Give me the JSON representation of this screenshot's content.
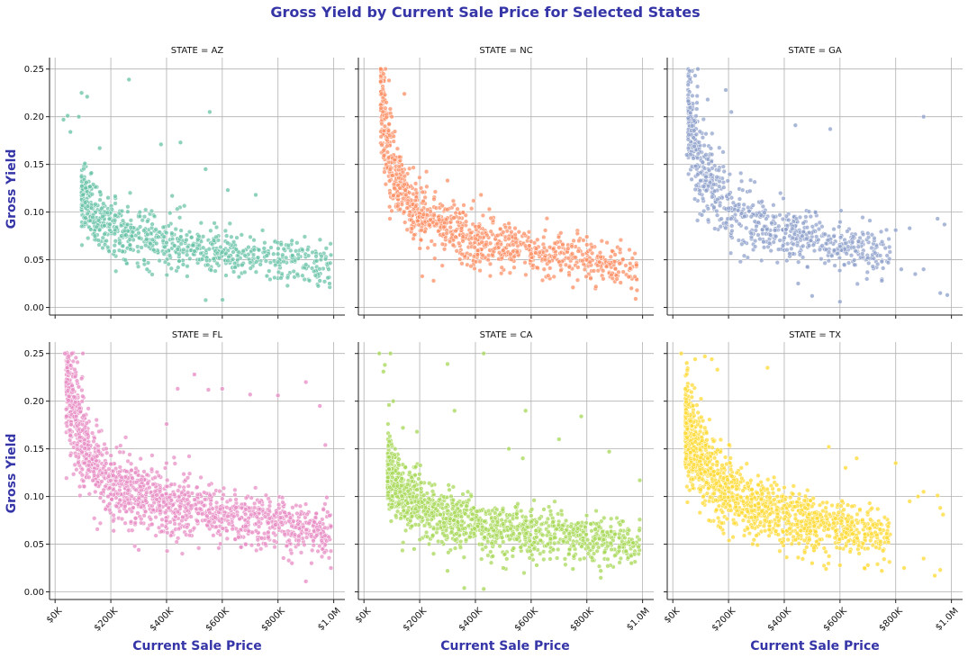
{
  "chart_data": {
    "type": "scatter",
    "title": "Gross Yield by Current Sale Price for Selected States",
    "xlabel": "Current Sale Price",
    "ylabel": "Gross Yield",
    "xlim": [
      -20000,
      1040000
    ],
    "ylim": [
      -0.008,
      0.262
    ],
    "x_ticks": [
      0,
      200000,
      400000,
      600000,
      800000,
      1000000
    ],
    "x_tick_labels": [
      "$0K",
      "$200K",
      "$400K",
      "$600K",
      "$800K",
      "$1.0M"
    ],
    "y_ticks": [
      0.0,
      0.05,
      0.1,
      0.15,
      0.2,
      0.25
    ],
    "y_tick_labels": [
      "0.00",
      "0.05",
      "0.10",
      "0.15",
      "0.20",
      "0.25"
    ],
    "grid": true,
    "facet_variable": "STATE",
    "panels": [
      {
        "title": "STATE = AZ",
        "color": "#66c2a5",
        "points": [
          [
            30000,
            0.197
          ],
          [
            45000,
            0.201
          ],
          [
            55000,
            0.184
          ],
          [
            85000,
            0.2
          ],
          [
            95000,
            0.225
          ],
          [
            115000,
            0.221
          ],
          [
            265000,
            0.239
          ],
          [
            555000,
            0.205
          ],
          [
            100000,
            0.118
          ],
          [
            130000,
            0.141
          ],
          [
            160000,
            0.167
          ],
          [
            190000,
            0.115
          ],
          [
            240000,
            0.101
          ],
          [
            260000,
            0.087
          ],
          [
            300000,
            0.078
          ],
          [
            350000,
            0.071
          ],
          [
            400000,
            0.068
          ],
          [
            420000,
            0.117
          ],
          [
            450000,
            0.173
          ],
          [
            500000,
            0.059
          ],
          [
            540000,
            0.145
          ],
          [
            600000,
            0.058
          ],
          [
            620000,
            0.123
          ],
          [
            650000,
            0.061
          ],
          [
            700000,
            0.047
          ],
          [
            720000,
            0.118
          ],
          [
            750000,
            0.062
          ],
          [
            800000,
            0.056
          ],
          [
            850000,
            0.07
          ],
          [
            900000,
            0.045
          ],
          [
            950000,
            0.028
          ],
          [
            985000,
            0.025
          ],
          [
            990000,
            0.055
          ],
          [
            380000,
            0.171
          ],
          [
            330000,
            0.04
          ],
          [
            460000,
            0.045
          ],
          [
            560000,
            0.039
          ],
          [
            660000,
            0.032
          ],
          [
            760000,
            0.033
          ]
        ],
        "trend": [
          [
            90000,
            0.12
          ],
          [
            150000,
            0.097
          ],
          [
            200000,
            0.087
          ],
          [
            300000,
            0.076
          ],
          [
            400000,
            0.068
          ],
          [
            500000,
            0.063
          ],
          [
            600000,
            0.058
          ],
          [
            700000,
            0.054
          ],
          [
            800000,
            0.051
          ],
          [
            900000,
            0.047
          ],
          [
            990000,
            0.044
          ]
        ],
        "n_cloud": 780,
        "cloud_xrange": [
          95000,
          990000
        ]
      },
      {
        "title": "STATE = NC",
        "color": "#fc8d62",
        "points": [
          [
            60000,
            0.25
          ],
          [
            70000,
            0.245
          ],
          [
            75000,
            0.223
          ],
          [
            90000,
            0.238
          ],
          [
            145000,
            0.224
          ],
          [
            75000,
            0.19
          ],
          [
            100000,
            0.2
          ],
          [
            130000,
            0.154
          ],
          [
            210000,
            0.121
          ],
          [
            270000,
            0.092
          ],
          [
            300000,
            0.133
          ],
          [
            350000,
            0.083
          ],
          [
            400000,
            0.072
          ],
          [
            420000,
            0.118
          ],
          [
            450000,
            0.103
          ],
          [
            480000,
            0.067
          ],
          [
            500000,
            0.06
          ],
          [
            520000,
            0.088
          ],
          [
            550000,
            0.058
          ],
          [
            600000,
            0.056
          ],
          [
            650000,
            0.05
          ],
          [
            700000,
            0.048
          ],
          [
            750000,
            0.021
          ],
          [
            800000,
            0.074
          ],
          [
            850000,
            0.053
          ],
          [
            900000,
            0.048
          ],
          [
            950000,
            0.032
          ],
          [
            960000,
            0.02
          ],
          [
            975000,
            0.009
          ],
          [
            980000,
            0.018
          ],
          [
            470000,
            0.062
          ],
          [
            520000,
            0.072
          ],
          [
            250000,
            0.028
          ]
        ],
        "trend": [
          [
            60000,
            0.215
          ],
          [
            80000,
            0.18
          ],
          [
            100000,
            0.158
          ],
          [
            130000,
            0.128
          ],
          [
            170000,
            0.108
          ],
          [
            220000,
            0.094
          ],
          [
            300000,
            0.082
          ],
          [
            400000,
            0.071
          ],
          [
            500000,
            0.064
          ],
          [
            600000,
            0.058
          ],
          [
            700000,
            0.054
          ],
          [
            800000,
            0.05
          ],
          [
            900000,
            0.046
          ],
          [
            980000,
            0.043
          ]
        ],
        "n_cloud": 950,
        "cloud_xrange": [
          60000,
          980000
        ]
      },
      {
        "title": "STATE = GA",
        "color": "#8da0cb",
        "points": [
          [
            60000,
            0.248
          ],
          [
            80000,
            0.243
          ],
          [
            90000,
            0.25
          ],
          [
            125000,
            0.218
          ],
          [
            190000,
            0.228
          ],
          [
            210000,
            0.205
          ],
          [
            440000,
            0.191
          ],
          [
            565000,
            0.187
          ],
          [
            900000,
            0.2
          ],
          [
            50000,
            0.16
          ],
          [
            100000,
            0.133
          ],
          [
            150000,
            0.122
          ],
          [
            200000,
            0.104
          ],
          [
            300000,
            0.085
          ],
          [
            350000,
            0.076
          ],
          [
            400000,
            0.073
          ],
          [
            480000,
            0.072
          ],
          [
            550000,
            0.067
          ],
          [
            600000,
            0.064
          ],
          [
            650000,
            0.063
          ],
          [
            700000,
            0.052
          ],
          [
            750000,
            0.048
          ],
          [
            800000,
            0.081
          ],
          [
            820000,
            0.04
          ],
          [
            850000,
            0.083
          ],
          [
            870000,
            0.035
          ],
          [
            900000,
            0.04
          ],
          [
            950000,
            0.093
          ],
          [
            975000,
            0.087
          ],
          [
            985000,
            0.013
          ],
          [
            960000,
            0.015
          ],
          [
            750000,
            0.028
          ],
          [
            600000,
            0.006
          ],
          [
            500000,
            0.012
          ],
          [
            450000,
            0.025
          ]
        ],
        "trend": [
          [
            55000,
            0.2
          ],
          [
            80000,
            0.17
          ],
          [
            110000,
            0.145
          ],
          [
            150000,
            0.124
          ],
          [
            200000,
            0.108
          ],
          [
            260000,
            0.096
          ],
          [
            320000,
            0.087
          ],
          [
            400000,
            0.079
          ],
          [
            500000,
            0.072
          ],
          [
            600000,
            0.066
          ],
          [
            700000,
            0.061
          ],
          [
            800000,
            0.057
          ],
          [
            900000,
            0.053
          ],
          [
            980000,
            0.05
          ]
        ],
        "n_cloud": 720,
        "cloud_xrange": [
          55000,
          780000
        ]
      },
      {
        "title": "STATE = FL",
        "color": "#e78ac3",
        "points": [
          [
            35000,
            0.25
          ],
          [
            60000,
            0.25
          ],
          [
            100000,
            0.25
          ],
          [
            40000,
            0.22
          ],
          [
            85000,
            0.215
          ],
          [
            190000,
            0.1
          ],
          [
            210000,
            0.064
          ],
          [
            300000,
            0.044
          ],
          [
            400000,
            0.176
          ],
          [
            440000,
            0.213
          ],
          [
            500000,
            0.228
          ],
          [
            550000,
            0.212
          ],
          [
            600000,
            0.213
          ],
          [
            700000,
            0.207
          ],
          [
            800000,
            0.206
          ],
          [
            900000,
            0.22
          ],
          [
            950000,
            0.195
          ],
          [
            970000,
            0.154
          ],
          [
            975000,
            0.099
          ],
          [
            985000,
            0.08
          ],
          [
            990000,
            0.025
          ],
          [
            900000,
            0.011
          ],
          [
            920000,
            0.03
          ],
          [
            850000,
            0.03
          ]
        ],
        "trend": [
          [
            40000,
            0.225
          ],
          [
            70000,
            0.19
          ],
          [
            100000,
            0.16
          ],
          [
            130000,
            0.14
          ],
          [
            170000,
            0.124
          ],
          [
            220000,
            0.112
          ],
          [
            300000,
            0.1
          ],
          [
            400000,
            0.091
          ],
          [
            500000,
            0.085
          ],
          [
            600000,
            0.079
          ],
          [
            700000,
            0.075
          ],
          [
            800000,
            0.071
          ],
          [
            900000,
            0.067
          ],
          [
            990000,
            0.064
          ]
        ],
        "n_cloud": 1450,
        "cloud_xrange": [
          40000,
          990000
        ]
      },
      {
        "title": "STATE = CA",
        "color": "#a6d854",
        "points": [
          [
            55000,
            0.25
          ],
          [
            70000,
            0.231
          ],
          [
            95000,
            0.25
          ],
          [
            75000,
            0.238
          ],
          [
            90000,
            0.196
          ],
          [
            105000,
            0.2
          ],
          [
            140000,
            0.172
          ],
          [
            190000,
            0.168
          ],
          [
            300000,
            0.239
          ],
          [
            325000,
            0.19
          ],
          [
            430000,
            0.25
          ],
          [
            520000,
            0.15
          ],
          [
            570000,
            0.14
          ],
          [
            580000,
            0.19
          ],
          [
            700000,
            0.16
          ],
          [
            780000,
            0.184
          ],
          [
            880000,
            0.147
          ],
          [
            990000,
            0.117
          ],
          [
            300000,
            0.022
          ],
          [
            360000,
            0.004
          ],
          [
            430000,
            0.003
          ],
          [
            180000,
            0.045
          ],
          [
            250000,
            0.04
          ],
          [
            500000,
            0.025
          ],
          [
            620000,
            0.028
          ],
          [
            750000,
            0.024
          ],
          [
            850000,
            0.022
          ],
          [
            960000,
            0.03
          ],
          [
            985000,
            0.047
          ]
        ],
        "trend": [
          [
            80000,
            0.13
          ],
          [
            120000,
            0.107
          ],
          [
            180000,
            0.093
          ],
          [
            250000,
            0.083
          ],
          [
            350000,
            0.074
          ],
          [
            450000,
            0.068
          ],
          [
            550000,
            0.063
          ],
          [
            650000,
            0.059
          ],
          [
            750000,
            0.056
          ],
          [
            850000,
            0.053
          ],
          [
            990000,
            0.05
          ]
        ],
        "n_cloud": 1250,
        "cloud_xrange": [
          85000,
          990000
        ]
      },
      {
        "title": "STATE = TX",
        "color": "#ffd92f",
        "points": [
          [
            30000,
            0.25
          ],
          [
            50000,
            0.24
          ],
          [
            80000,
            0.244
          ],
          [
            115000,
            0.247
          ],
          [
            140000,
            0.244
          ],
          [
            160000,
            0.233
          ],
          [
            340000,
            0.235
          ],
          [
            560000,
            0.152
          ],
          [
            620000,
            0.13
          ],
          [
            660000,
            0.14
          ],
          [
            800000,
            0.135
          ],
          [
            850000,
            0.095
          ],
          [
            880000,
            0.1
          ],
          [
            900000,
            0.105
          ],
          [
            950000,
            0.101
          ],
          [
            960000,
            0.088
          ],
          [
            970000,
            0.081
          ],
          [
            960000,
            0.023
          ],
          [
            940000,
            0.017
          ],
          [
            900000,
            0.035
          ],
          [
            830000,
            0.025
          ],
          [
            750000,
            0.022
          ],
          [
            700000,
            0.028
          ],
          [
            600000,
            0.028
          ],
          [
            550000,
            0.024
          ],
          [
            500000,
            0.03
          ],
          [
            450000,
            0.036
          ],
          [
            300000,
            0.059
          ]
        ],
        "trend": [
          [
            40000,
            0.18
          ],
          [
            70000,
            0.16
          ],
          [
            100000,
            0.14
          ],
          [
            140000,
            0.123
          ],
          [
            190000,
            0.108
          ],
          [
            250000,
            0.097
          ],
          [
            320000,
            0.088
          ],
          [
            400000,
            0.08
          ],
          [
            500000,
            0.072
          ],
          [
            600000,
            0.066
          ],
          [
            700000,
            0.062
          ],
          [
            800000,
            0.058
          ],
          [
            900000,
            0.055
          ],
          [
            980000,
            0.052
          ]
        ],
        "n_cloud": 1300,
        "cloud_xrange": [
          45000,
          780000
        ]
      }
    ]
  }
}
